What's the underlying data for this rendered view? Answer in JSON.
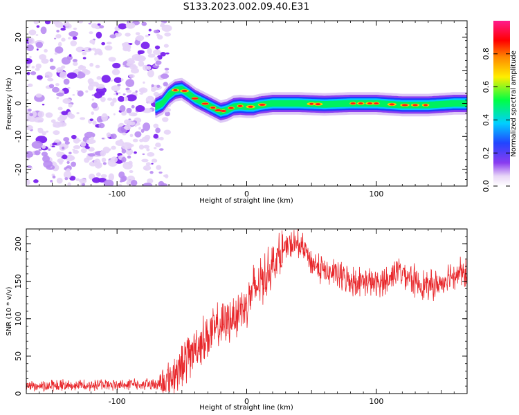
{
  "title": "S133.2023.002.09.40.E31",
  "chart_data": [
    {
      "type": "heatmap",
      "xlabel": "Height of straight line (km)",
      "ylabel": "Frequency (Hz)",
      "xlim": [
        -170,
        170
      ],
      "ylim": [
        -25,
        25
      ],
      "x_ticks": [
        -100,
        0,
        100
      ],
      "x_tick_labels": [
        "-100",
        "0",
        "100"
      ],
      "y_ticks": [
        -20,
        -10,
        0,
        10,
        20
      ],
      "y_tick_labels": [
        "-20",
        "-10",
        "0",
        "10",
        "20"
      ],
      "noise_region_x": [
        -170,
        -67
      ],
      "ridge": {
        "x": [
          -70,
          -65,
          -60,
          -55,
          -50,
          -45,
          -40,
          -35,
          -30,
          -25,
          -20,
          -15,
          -10,
          -5,
          0,
          5,
          10,
          20,
          40,
          60,
          80,
          100,
          120,
          140,
          160,
          170
        ],
        "y": [
          -1,
          0,
          2.5,
          4,
          4.3,
          3,
          1.5,
          0.5,
          -0.5,
          -1.5,
          -2.5,
          -2,
          -1,
          -0.8,
          -1,
          -1,
          -0.5,
          0,
          0,
          -0.3,
          0,
          0,
          -0.5,
          -0.5,
          0,
          0
        ]
      },
      "colorbar": {
        "label": "Normalized spectral amplitude",
        "range": [
          0,
          1
        ],
        "ticks": [
          0,
          0.2,
          0.4,
          0.6,
          0.8
        ],
        "tick_labels": [
          "0.0",
          "0.2",
          "0.4",
          "0.6",
          "0.8"
        ],
        "colors": [
          "#e9d7f7",
          "#7b2cf0",
          "#2244ff",
          "#00d0ff",
          "#00ff44",
          "#ffee00",
          "#ff8800",
          "#ff0000",
          "#ff1b8d"
        ]
      }
    },
    {
      "type": "line",
      "xlabel": "Height of straight line (km)",
      "ylabel": "SNR (10 * v/v)",
      "xlim": [
        -170,
        170
      ],
      "ylim": [
        0,
        220
      ],
      "x_ticks": [
        -100,
        0,
        100
      ],
      "x_tick_labels": [
        "-100",
        "0",
        "100"
      ],
      "y_ticks": [
        0,
        50,
        100,
        150,
        200
      ],
      "y_tick_labels": [
        "0",
        "50",
        "100",
        "150",
        "200"
      ],
      "color": "#e8262a",
      "series": [
        {
          "x": [
            -170,
            -140,
            -110,
            -80,
            -67,
            -60,
            -55,
            -50,
            -45,
            -40,
            -35,
            -30,
            -25,
            -20,
            -15,
            -10,
            -5,
            0,
            5,
            10,
            15,
            20,
            25,
            30,
            35,
            40,
            45,
            50,
            55,
            60,
            70,
            80,
            90,
            100,
            110,
            115,
            120,
            125,
            130,
            140,
            150,
            155,
            160,
            165,
            170
          ],
          "y": [
            10,
            11,
            12,
            12,
            13,
            18,
            28,
            38,
            50,
            62,
            70,
            78,
            83,
            90,
            96,
            104,
            112,
            122,
            138,
            148,
            160,
            172,
            185,
            193,
            198,
            199,
            192,
            176,
            168,
            164,
            158,
            152,
            150,
            146,
            152,
            166,
            162,
            158,
            150,
            143,
            147,
            158,
            160,
            162,
            158
          ]
        }
      ]
    }
  ]
}
